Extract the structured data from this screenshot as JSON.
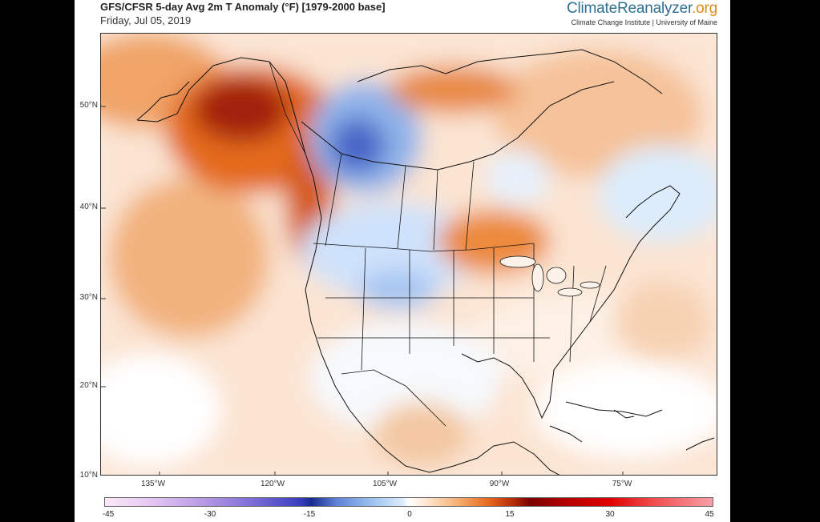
{
  "header": {
    "title": "GFS/CFSR 5-day Avg 2m T Anomaly (°F) [1979-2000 base]",
    "date": "Friday, Jul 05, 2019",
    "brand_main": "ClimateReanalyzer",
    "brand_tld": ".org",
    "brand_sub": "Climate Change Institute | University of Maine"
  },
  "map": {
    "lat_labels": [
      "50°N",
      "40°N",
      "30°N",
      "20°N",
      "10°N"
    ],
    "lon_labels": [
      "135°W",
      "120°W",
      "105°W",
      "90°W",
      "75°W"
    ]
  },
  "colorbar": {
    "ticks": [
      "-45",
      "-30",
      "-15",
      "0",
      "15",
      "30",
      "45"
    ],
    "colors": {
      "strong_cold": "#1a2a90",
      "cold": "#5c80d6",
      "neutral": "#ffffff",
      "warm": "#e86a1e",
      "strong_warm": "#7a0000"
    }
  }
}
